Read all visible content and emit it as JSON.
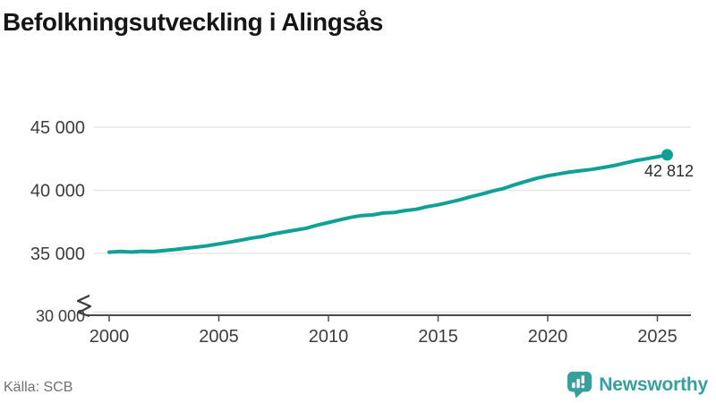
{
  "title": "Befolkningsutveckling i Alingsås",
  "source": "Källa: SCB",
  "branding": {
    "name": "Newsworthy",
    "icon": "newsworthy-chart-bubble-icon",
    "color": "#38a09c"
  },
  "colors": {
    "line": "#10a096",
    "marker": "#10a096",
    "grid": "#e6e6e6",
    "axis": "#4b4b4b",
    "break_glyph": "#3a3a3a",
    "title_text": "#161616",
    "tick_text": "#3d3d3d",
    "end_label_text": "#2b2b2b",
    "source_text": "#6f6f76",
    "brand_teal": "#38a09c"
  },
  "chart_data": {
    "type": "line",
    "title": "Befolkningsutveckling i Alingsås",
    "xlabel": "",
    "ylabel": "",
    "legend": "none",
    "grid": "horizontal",
    "axis_break": true,
    "xlim": [
      2000,
      2026.5
    ],
    "ylim": [
      30000,
      45000
    ],
    "x_ticks": [
      2000,
      2005,
      2010,
      2015,
      2020,
      2025
    ],
    "y_ticks": [
      {
        "value": 45000,
        "label": "45 000"
      },
      {
        "value": 40000,
        "label": "40 000"
      },
      {
        "value": 35000,
        "label": "35 000"
      },
      {
        "value": 30000,
        "label": "30 000"
      }
    ],
    "x": [
      2000,
      2000.5,
      2001,
      2001.5,
      2002,
      2002.5,
      2003,
      2003.5,
      2004,
      2004.5,
      2005,
      2005.5,
      2006,
      2006.5,
      2007,
      2007.5,
      2008,
      2008.5,
      2009,
      2009.5,
      2010,
      2010.5,
      2011,
      2011.5,
      2012,
      2012.5,
      2013,
      2013.5,
      2014,
      2014.5,
      2015,
      2015.5,
      2016,
      2016.5,
      2017,
      2017.5,
      2018,
      2018.5,
      2019,
      2019.5,
      2020,
      2020.5,
      2021,
      2021.5,
      2022,
      2022.5,
      2023,
      2023.5,
      2024,
      2024.5,
      2025,
      2025.45
    ],
    "series": [
      {
        "name": "Befolkning",
        "values": [
          35100,
          35160,
          35110,
          35170,
          35150,
          35230,
          35310,
          35420,
          35500,
          35620,
          35750,
          35900,
          36050,
          36220,
          36350,
          36550,
          36700,
          36850,
          37000,
          37250,
          37450,
          37650,
          37850,
          38000,
          38050,
          38200,
          38250,
          38400,
          38500,
          38700,
          38850,
          39050,
          39250,
          39500,
          39700,
          39950,
          40150,
          40450,
          40700,
          40950,
          41150,
          41300,
          41450,
          41550,
          41650,
          41800,
          41950,
          42150,
          42350,
          42500,
          42650,
          42812
        ]
      }
    ],
    "end_value": 42812,
    "end_label": "42 812"
  }
}
